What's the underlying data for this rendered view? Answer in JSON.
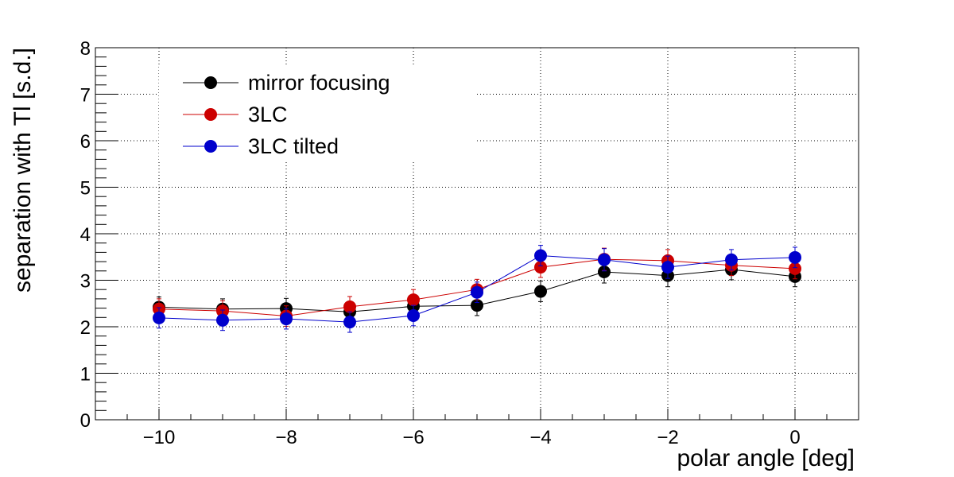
{
  "chart_data": {
    "type": "line",
    "xlabel": "polar angle [deg]",
    "ylabel": "separation with Tl [s.d.]",
    "xlim": [
      -11,
      1
    ],
    "ylim": [
      0,
      8
    ],
    "grid": true,
    "legend_position": "top-left",
    "x_ticks": [
      -10,
      -8,
      -6,
      -4,
      -2,
      0
    ],
    "x_tick_labels": [
      "−10",
      "−8",
      "−6",
      "−4",
      "−2",
      "0"
    ],
    "y_ticks": [
      0,
      1,
      2,
      3,
      4,
      5,
      6,
      7,
      8
    ],
    "y_tick_labels": [
      "0",
      "1",
      "2",
      "3",
      "4",
      "5",
      "6",
      "7",
      "8"
    ],
    "x": [
      -10,
      -9,
      -8,
      -7,
      -6,
      -5,
      -4,
      -3,
      -2,
      -1,
      0
    ],
    "series": [
      {
        "name": "mirror focusing",
        "color": "#000000",
        "values": [
          2.42,
          2.38,
          2.39,
          2.32,
          2.44,
          2.46,
          2.76,
          3.18,
          3.1,
          3.23,
          3.08
        ],
        "errors": [
          0.22,
          0.22,
          0.22,
          0.22,
          0.22,
          0.22,
          0.22,
          0.24,
          0.24,
          0.22,
          0.22
        ]
      },
      {
        "name": "3LC",
        "color": "#cc0000",
        "values": [
          2.38,
          2.34,
          2.23,
          2.43,
          2.58,
          2.8,
          3.28,
          3.45,
          3.42,
          3.32,
          3.25
        ],
        "errors": [
          0.22,
          0.22,
          0.22,
          0.22,
          0.22,
          0.22,
          0.22,
          0.24,
          0.24,
          0.22,
          0.22
        ]
      },
      {
        "name": "3LC tilted",
        "color": "#0000cc",
        "values": [
          2.19,
          2.14,
          2.17,
          2.1,
          2.24,
          2.74,
          3.53,
          3.44,
          3.28,
          3.44,
          3.49
        ],
        "errors": [
          0.22,
          0.22,
          0.22,
          0.22,
          0.22,
          0.22,
          0.22,
          0.24,
          0.24,
          0.22,
          0.22
        ]
      }
    ]
  }
}
